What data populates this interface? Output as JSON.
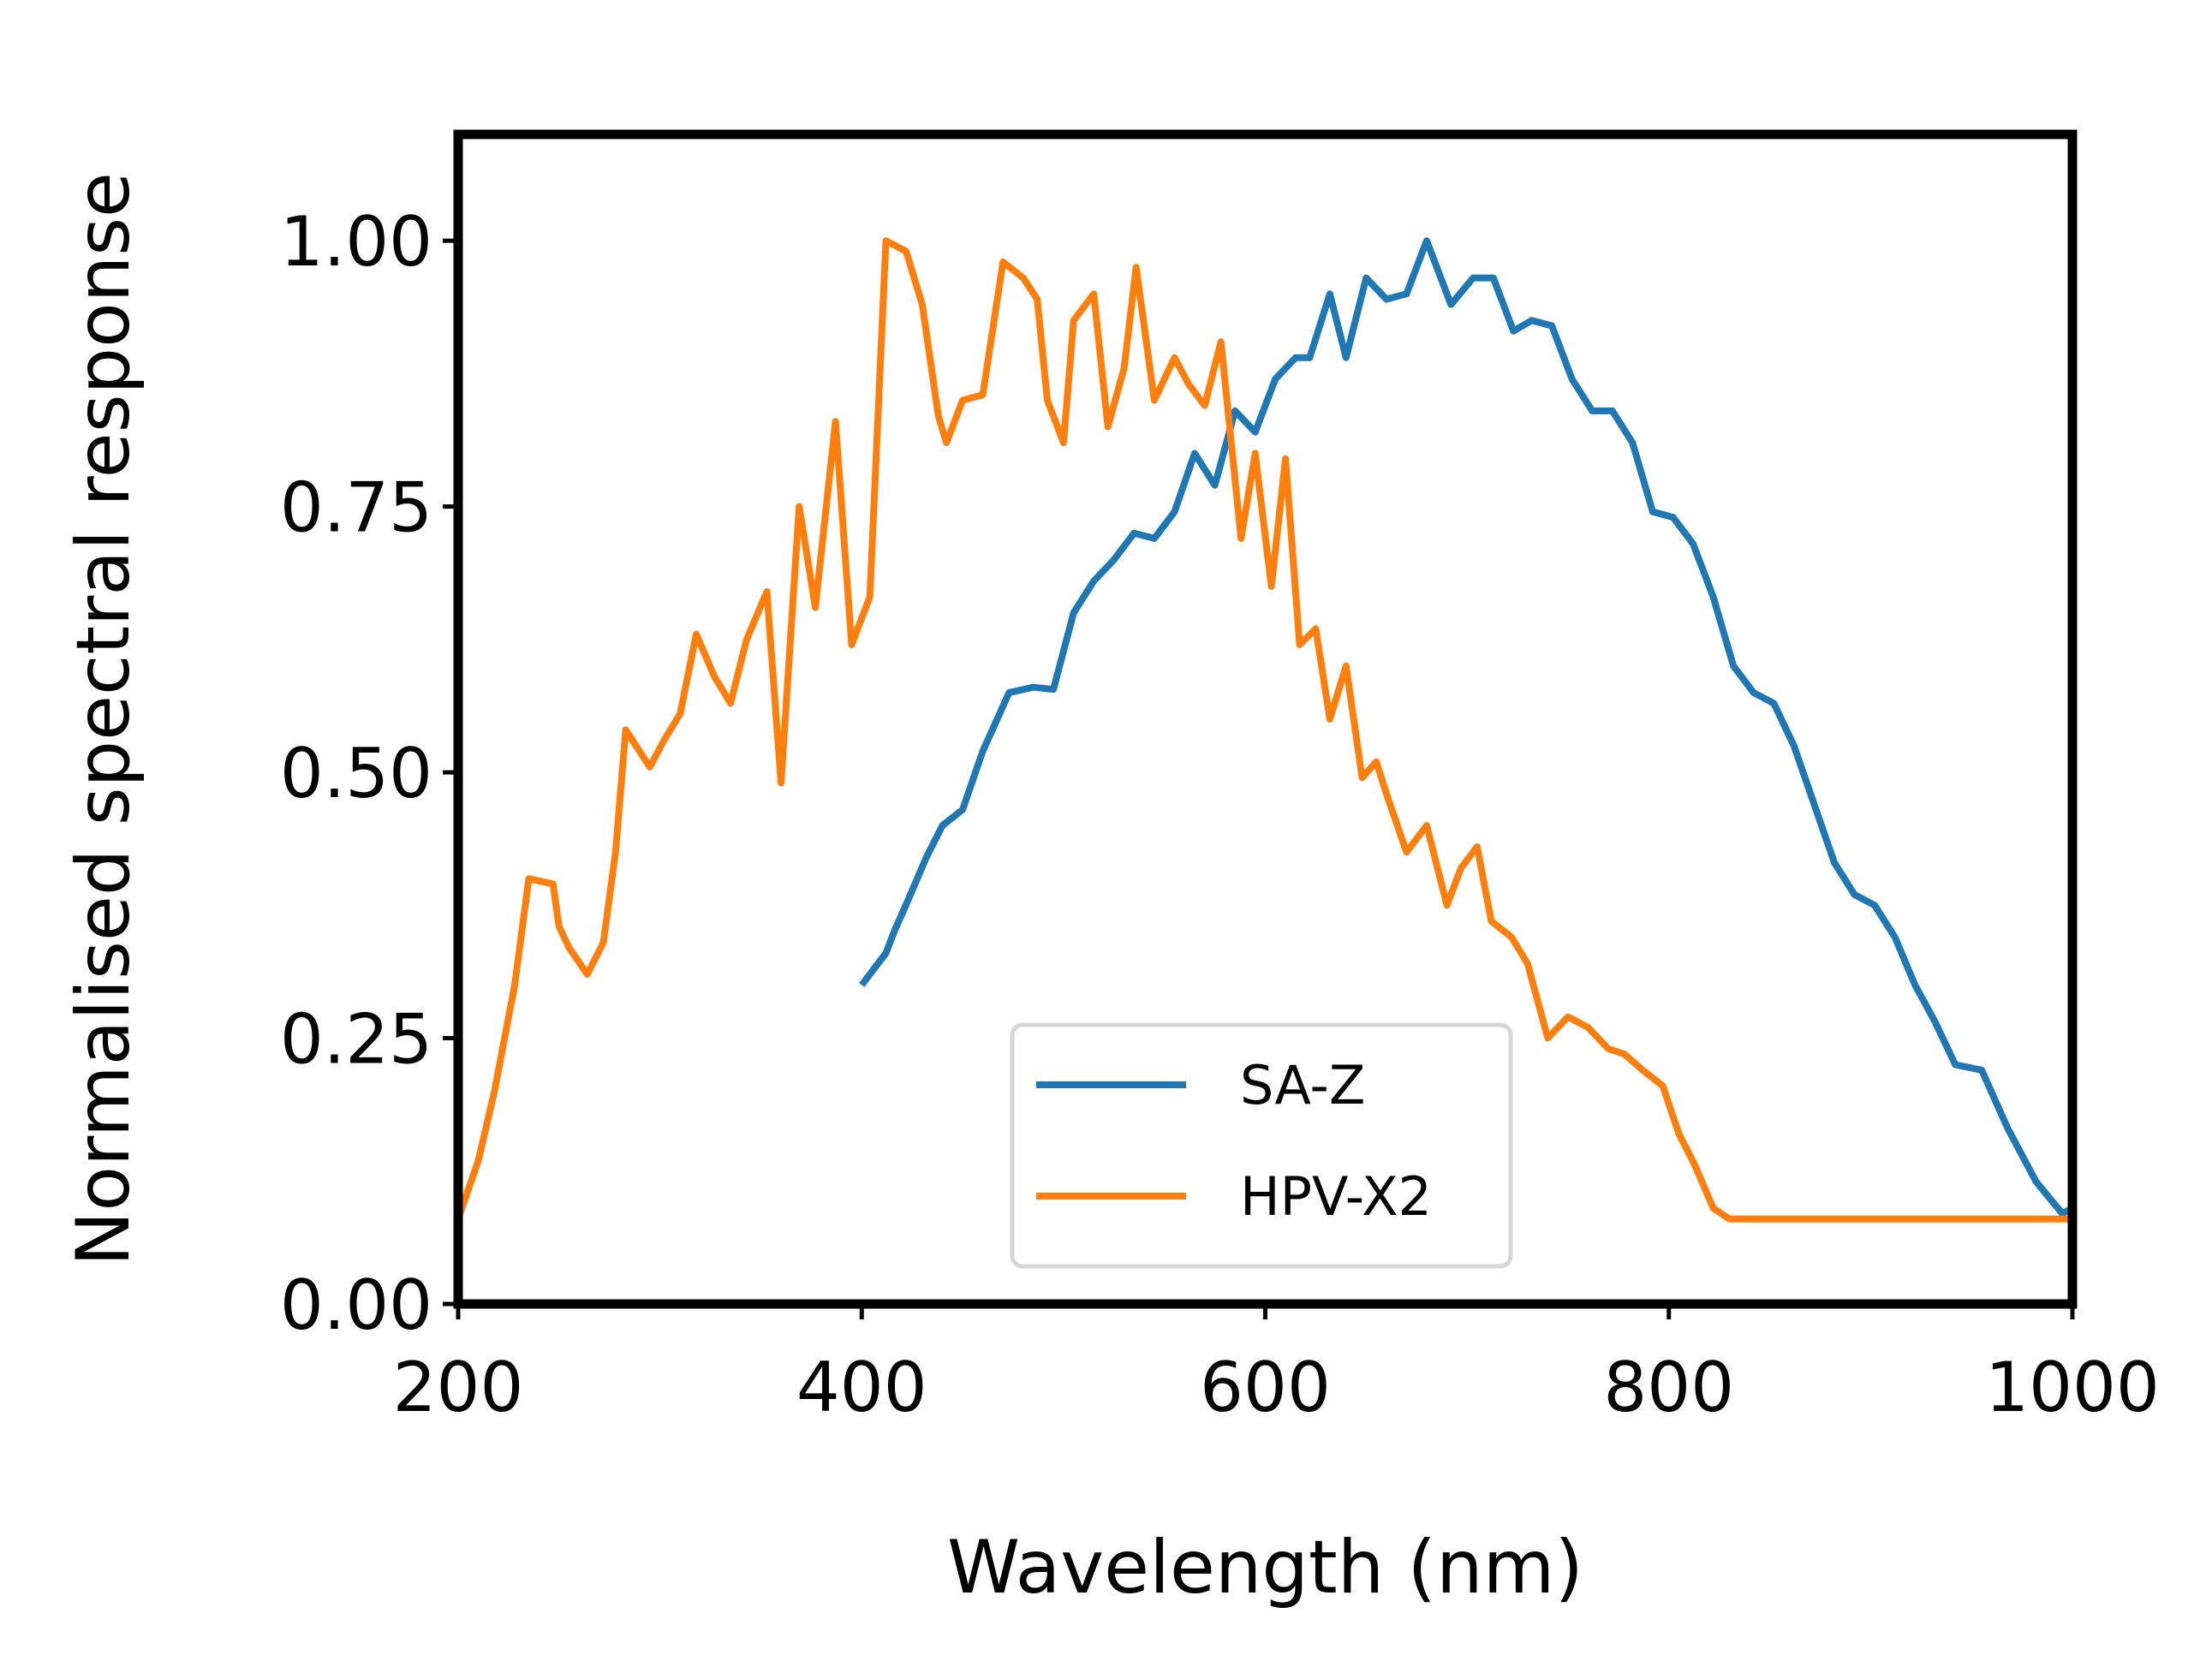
{
  "chart_data": {
    "type": "line",
    "title": "",
    "xlabel": "Wavelength (nm)",
    "ylabel": "Normalised spectral response",
    "xlim": [
      200,
      1000
    ],
    "ylim": [
      0,
      1.1
    ],
    "xticks": [
      200,
      400,
      600,
      800,
      1000
    ],
    "xtick_labels": [
      "200",
      "400",
      "600",
      "800",
      "1000"
    ],
    "yticks": [
      0,
      0.25,
      0.5,
      0.75,
      1.0
    ],
    "ytick_labels": [
      "0.00",
      "0.25",
      "0.50",
      "0.75",
      "1.00"
    ],
    "grid": false,
    "legend": {
      "placement": "lower-center"
    },
    "series": [
      {
        "name": "SA-Z",
        "color": "#1f77b4",
        "x": [
          400,
          412,
          416,
          423,
          432,
          440,
          450,
          460,
          473,
          485,
          495,
          505,
          515,
          525,
          535,
          545,
          555,
          565,
          575,
          585,
          595,
          605,
          615,
          622,
          632,
          640,
          650,
          660,
          670,
          680,
          692,
          703,
          713,
          723,
          732,
          742,
          752,
          762,
          772,
          782,
          792,
          802,
          812,
          822,
          832,
          842,
          852,
          862,
          872,
          882,
          892,
          902,
          912,
          922,
          932,
          942,
          955,
          968,
          982,
          995,
          1000
        ],
        "y": [
          0.3,
          0.33,
          0.35,
          0.38,
          0.42,
          0.45,
          0.465,
          0.52,
          0.575,
          0.58,
          0.578,
          0.65,
          0.68,
          0.7,
          0.725,
          0.72,
          0.745,
          0.8,
          0.77,
          0.84,
          0.82,
          0.87,
          0.89,
          0.89,
          0.95,
          0.89,
          0.965,
          0.945,
          0.95,
          1.0,
          0.94,
          0.965,
          0.965,
          0.915,
          0.925,
          0.92,
          0.87,
          0.84,
          0.84,
          0.81,
          0.745,
          0.74,
          0.715,
          0.665,
          0.6,
          0.575,
          0.565,
          0.525,
          0.47,
          0.415,
          0.385,
          0.375,
          0.345,
          0.3,
          0.265,
          0.225,
          0.22,
          0.165,
          0.115,
          0.085,
          0.09
        ]
      },
      {
        "name": "HPV-X2",
        "color": "#ff7f0e",
        "x": [
          200,
          210,
          218,
          228,
          235,
          247,
          250,
          255,
          264,
          272,
          278,
          283,
          295,
          302,
          310,
          318,
          327,
          335,
          343,
          353,
          360,
          369,
          377,
          387,
          395,
          404,
          412,
          422,
          430,
          438,
          442,
          450,
          460,
          470,
          480,
          487,
          492,
          500,
          505,
          515,
          522,
          530,
          536,
          545,
          555,
          562,
          570,
          578,
          588,
          595,
          603,
          610,
          617,
          625,
          632,
          640,
          648,
          655,
          660,
          670,
          680,
          690,
          697,
          705,
          712,
          722,
          730,
          740,
          750,
          760,
          770,
          778,
          787,
          797,
          805,
          813,
          822,
          830,
          840,
          850,
          858,
          865,
          875,
          885,
          890,
          902,
          915,
          930,
          950,
          975,
          1000
        ],
        "y": [
          0.08,
          0.135,
          0.2,
          0.3,
          0.4,
          0.395,
          0.355,
          0.335,
          0.31,
          0.34,
          0.425,
          0.54,
          0.505,
          0.53,
          0.555,
          0.63,
          0.59,
          0.565,
          0.625,
          0.67,
          0.49,
          0.75,
          0.655,
          0.83,
          0.62,
          0.665,
          1.0,
          0.99,
          0.94,
          0.835,
          0.81,
          0.85,
          0.855,
          0.98,
          0.965,
          0.945,
          0.85,
          0.81,
          0.925,
          0.95,
          0.825,
          0.88,
          0.975,
          0.85,
          0.89,
          0.865,
          0.845,
          0.905,
          0.72,
          0.8,
          0.675,
          0.795,
          0.62,
          0.635,
          0.55,
          0.6,
          0.495,
          0.51,
          0.48,
          0.425,
          0.45,
          0.375,
          0.41,
          0.43,
          0.36,
          0.345,
          0.32,
          0.25,
          0.27,
          0.26,
          0.24,
          0.235,
          0.22,
          0.205,
          0.16,
          0.13,
          0.09,
          0.08,
          0.08,
          0.08,
          0.08,
          0.08,
          0.08,
          0.08,
          0.08,
          0.08,
          0.08,
          0.08,
          0.08,
          0.08,
          0.08
        ]
      }
    ]
  }
}
